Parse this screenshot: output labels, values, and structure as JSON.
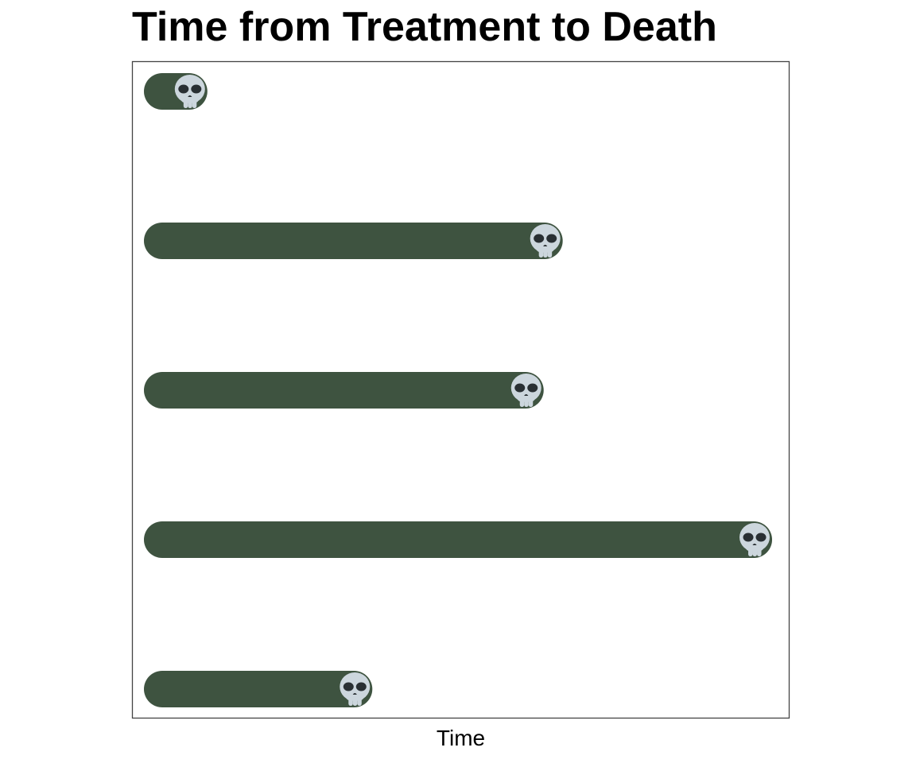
{
  "chart_data": {
    "type": "bar",
    "orientation": "horizontal",
    "title": "Time from Treatment to Death",
    "xlabel": "Time",
    "ylabel": "",
    "categories": [
      "",
      "",
      "",
      "",
      ""
    ],
    "values": [
      0.1,
      0.66,
      0.63,
      0.99,
      0.36
    ],
    "xlim": [
      0,
      1
    ],
    "grid": false,
    "legend": "none",
    "bar_color": "#3e5340",
    "end_marker": "skull-icon",
    "skull_color": "#ccd6dd",
    "skull_feature_color": "#292f33",
    "frame_color": "#444444"
  }
}
